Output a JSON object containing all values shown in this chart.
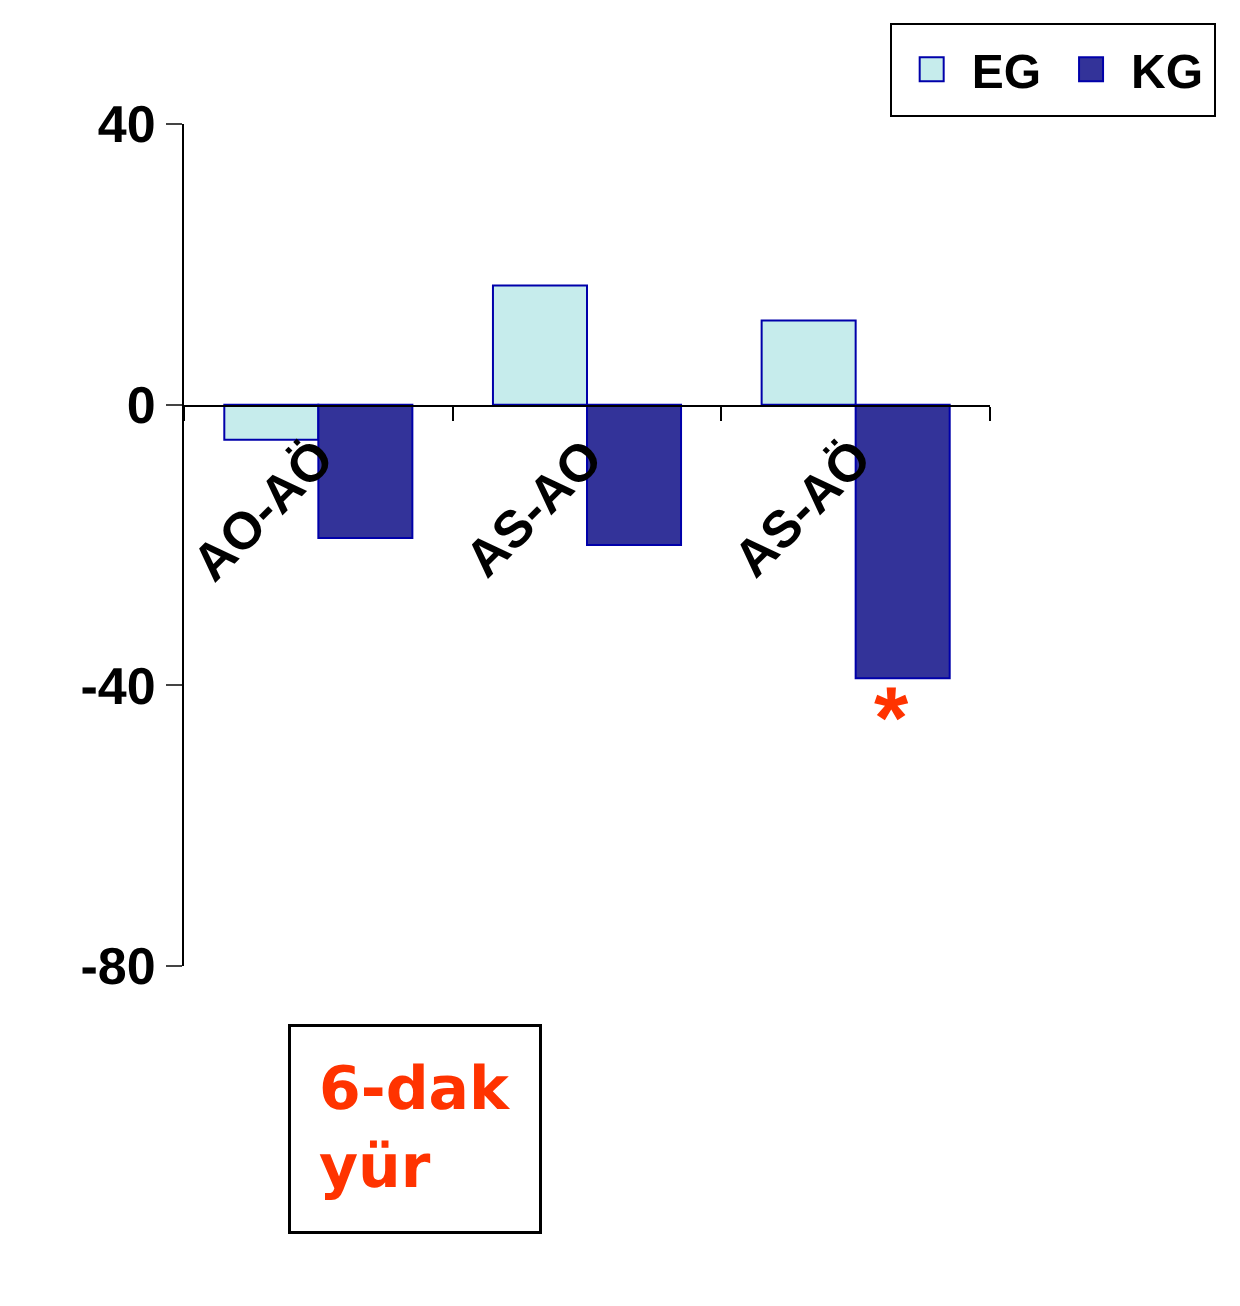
{
  "chart_data": {
    "type": "bar",
    "categories": [
      "AO-AÖ",
      "AS-AO",
      "AS-AÖ"
    ],
    "series": [
      {
        "name": "EG",
        "color": "#c6ecec",
        "values": [
          -5,
          17,
          12
        ]
      },
      {
        "name": "KG",
        "color": "#333399",
        "values": [
          -19,
          -20,
          -39
        ]
      }
    ],
    "ylim": [
      -80,
      40
    ],
    "yticks": [
      -80,
      -40,
      0,
      40
    ],
    "grid": false,
    "legend": "top right",
    "annotations": [
      "*",
      "6-dak yür"
    ]
  }
}
